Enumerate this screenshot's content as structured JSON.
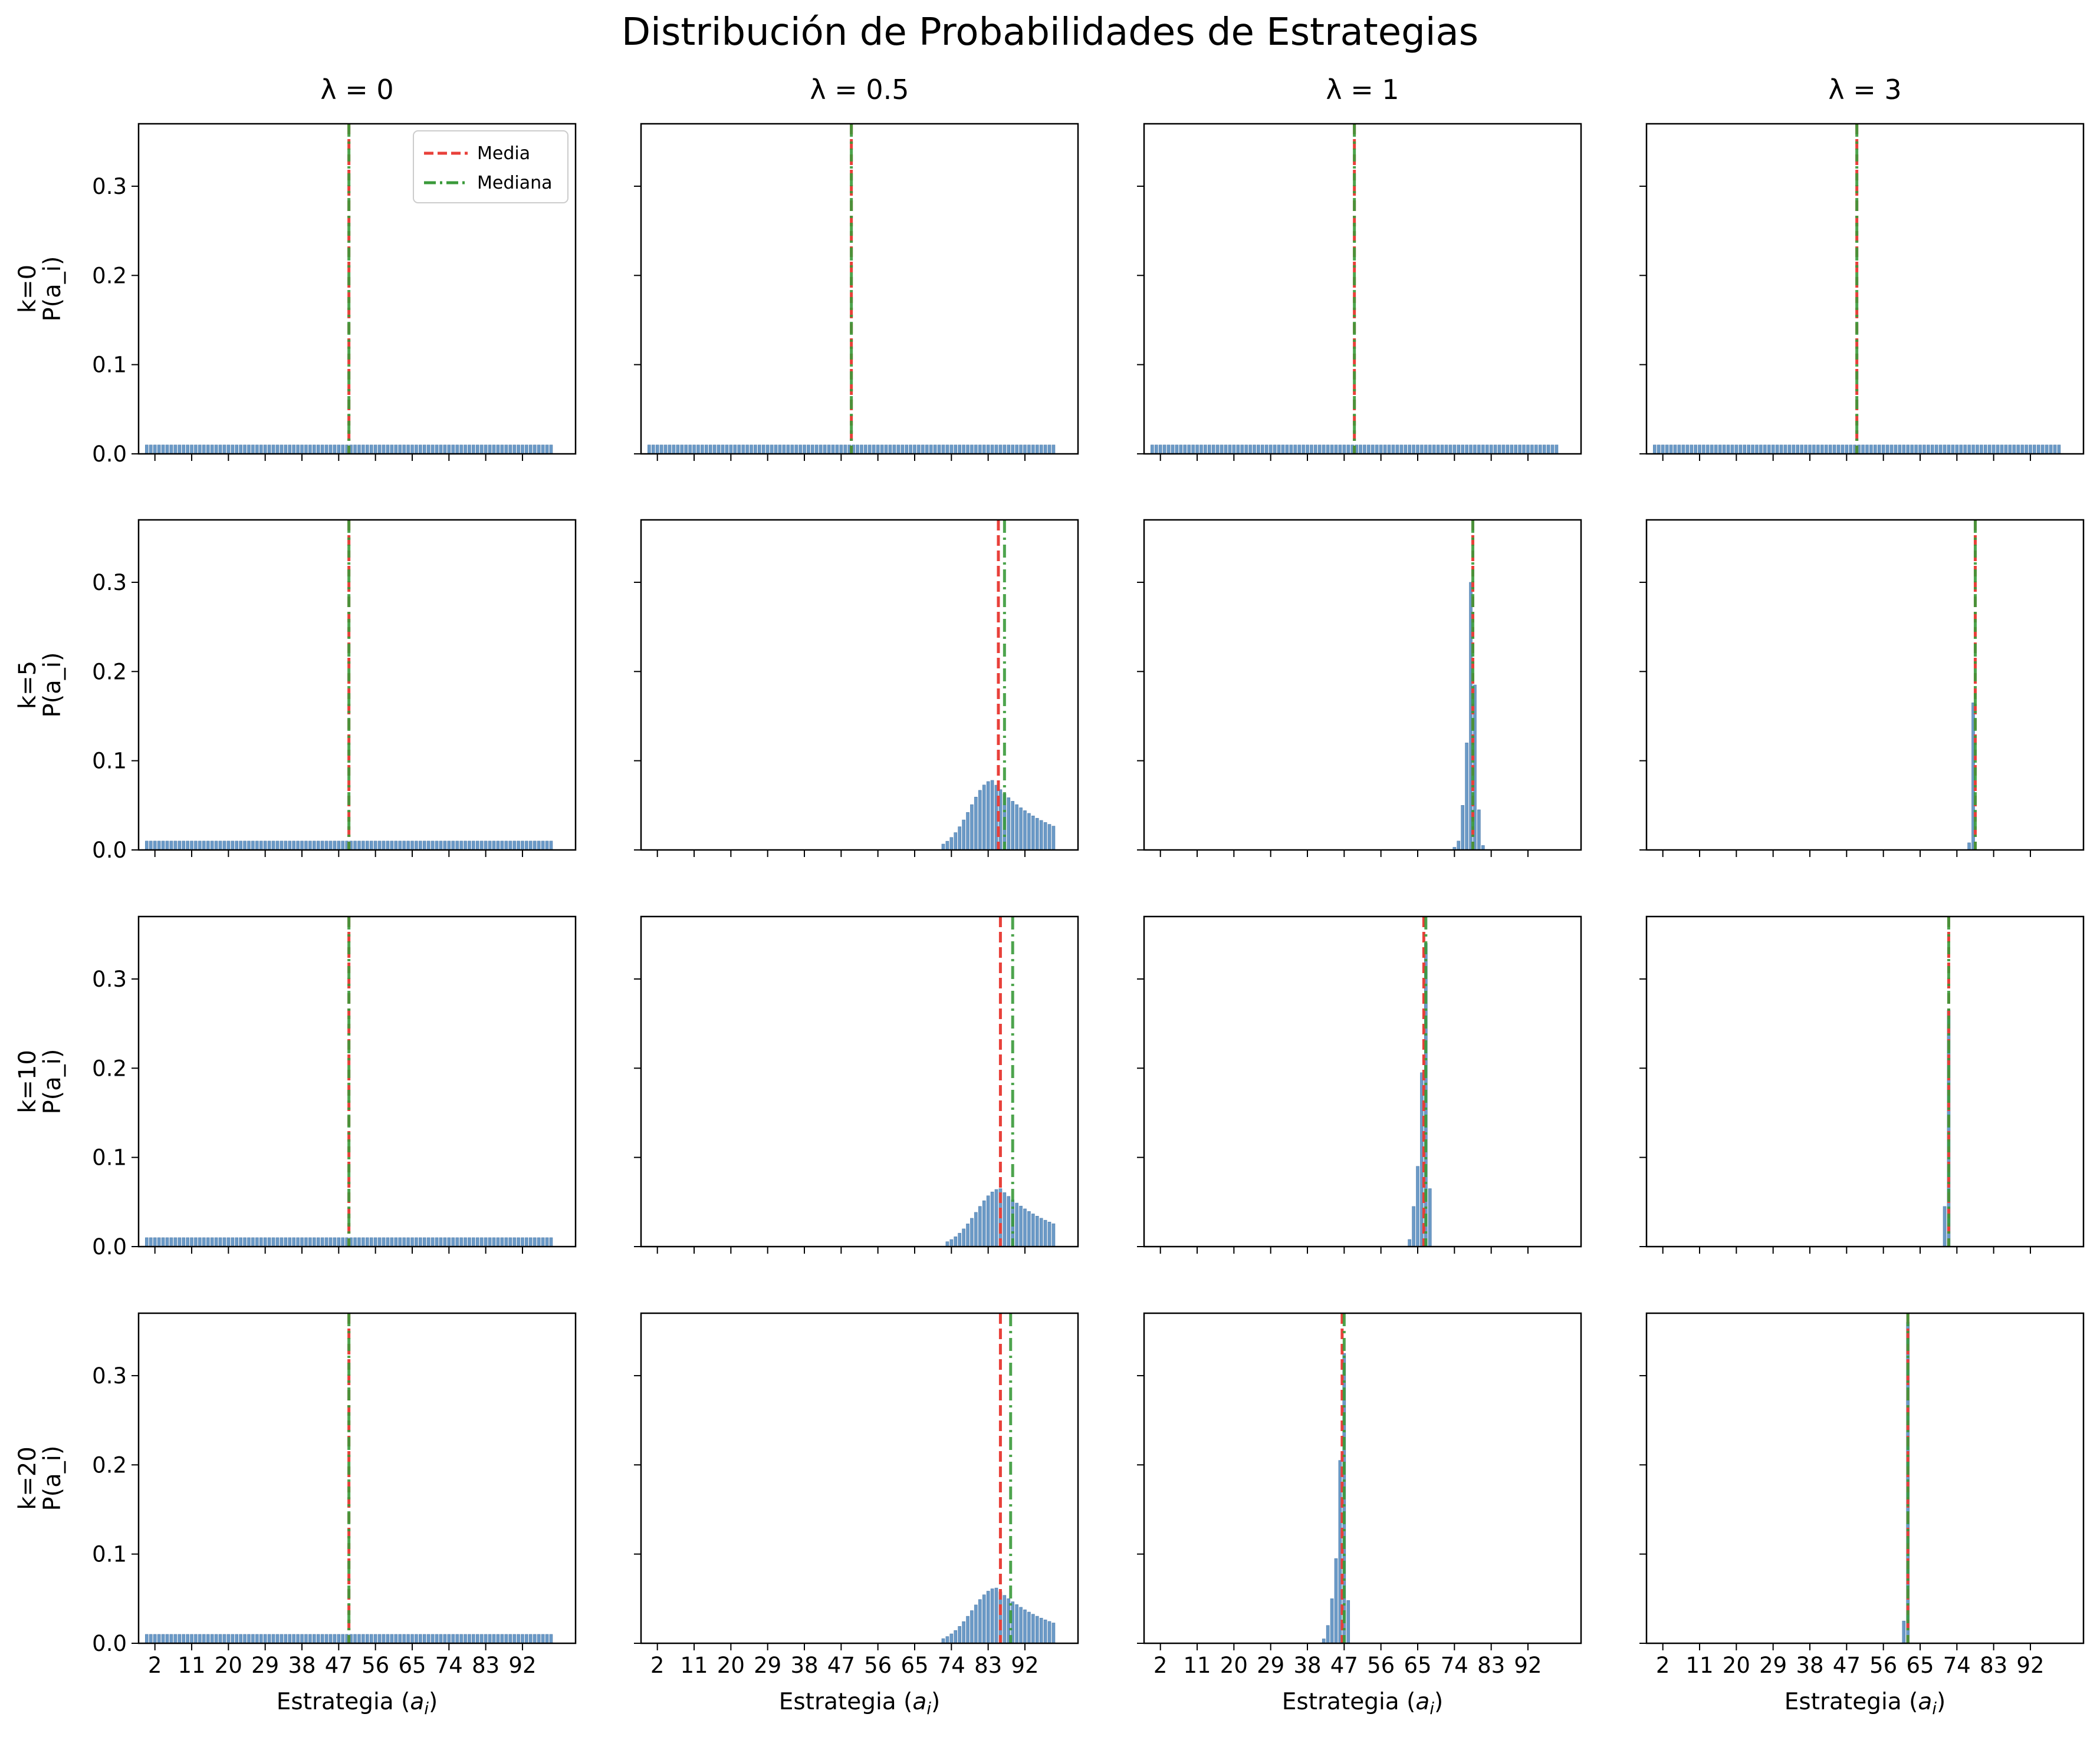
{
  "chart_data": {
    "type": "bar",
    "title": "Distribución de Probabilidades de Estrategias",
    "layout": "4x4 grid of subplots, shared axes",
    "columns": [
      "λ = 0",
      "λ = 0.5",
      "λ = 1",
      "λ = 3"
    ],
    "rows": [
      "k=0",
      "k=5",
      "k=10",
      "k=20"
    ],
    "ylabel": "P(a_i)",
    "xlabel": "Estrategia (a_i)",
    "x_range": [
      0,
      100
    ],
    "xlim": [
      -2,
      105
    ],
    "ylim": [
      0,
      0.37
    ],
    "x_ticks": [
      2,
      11,
      20,
      29,
      38,
      47,
      56,
      65,
      74,
      83,
      92
    ],
    "y_ticks": [
      0.0,
      0.1,
      0.2,
      0.3
    ],
    "y_tick_labels": [
      "0.0",
      "0.1",
      "0.2",
      "0.3"
    ],
    "bar_color": "#6b9ac7",
    "legend": {
      "position": "top-right of first subplot",
      "entries": [
        {
          "name": "Media",
          "style": "dashed",
          "color": "#e8403a"
        },
        {
          "name": "Mediana",
          "style": "dash-dot",
          "color": "#3a9a3a"
        }
      ]
    },
    "grid": false,
    "panels": [
      {
        "row": 0,
        "col": 0,
        "dist": "uniform",
        "mean": 49.5,
        "median": 49.5
      },
      {
        "row": 0,
        "col": 1,
        "dist": "uniform",
        "mean": 49.5,
        "median": 49.5
      },
      {
        "row": 0,
        "col": 2,
        "dist": "uniform",
        "mean": 49.5,
        "median": 49.5
      },
      {
        "row": 0,
        "col": 3,
        "dist": "uniform",
        "mean": 49.5,
        "median": 49.5
      },
      {
        "row": 1,
        "col": 0,
        "dist": "uniform",
        "mean": 49.5,
        "median": 49.5
      },
      {
        "row": 1,
        "col": 1,
        "dist": "skewed",
        "peak_x": 84,
        "peak_y": 0.078,
        "start_x": 72,
        "mean": 85.5,
        "median": 87
      },
      {
        "row": 1,
        "col": 2,
        "dist": "discrete",
        "points": [
          [
            74,
            0.003
          ],
          [
            75,
            0.01
          ],
          [
            76,
            0.05
          ],
          [
            77,
            0.12
          ],
          [
            78,
            0.3
          ],
          [
            79,
            0.185
          ],
          [
            80,
            0.045
          ],
          [
            81,
            0.005
          ]
        ],
        "mean": 78.5,
        "median": 78.5
      },
      {
        "row": 1,
        "col": 3,
        "dist": "discrete",
        "points": [
          [
            77,
            0.008
          ],
          [
            78,
            0.165
          ]
        ],
        "mean": 78.5,
        "median": 78.5
      },
      {
        "row": 2,
        "col": 0,
        "dist": "uniform",
        "mean": 49.5,
        "median": 49.5
      },
      {
        "row": 2,
        "col": 1,
        "dist": "skewed",
        "peak_x": 86,
        "peak_y": 0.065,
        "start_x": 73,
        "mean": 86,
        "median": 89
      },
      {
        "row": 2,
        "col": 2,
        "dist": "discrete",
        "points": [
          [
            63,
            0.008
          ],
          [
            64,
            0.045
          ],
          [
            65,
            0.09
          ],
          [
            66,
            0.195
          ],
          [
            67,
            0.34
          ],
          [
            68,
            0.065
          ]
        ],
        "mean": 66.5,
        "median": 67
      },
      {
        "row": 2,
        "col": 3,
        "dist": "discrete",
        "points": [
          [
            71,
            0.045
          ],
          [
            72,
            0.265
          ]
        ],
        "mean": 72,
        "median": 72
      },
      {
        "row": 3,
        "col": 0,
        "dist": "uniform",
        "mean": 49.5,
        "median": 49.5
      },
      {
        "row": 3,
        "col": 1,
        "dist": "skewed",
        "peak_x": 85,
        "peak_y": 0.062,
        "start_x": 72,
        "mean": 86,
        "median": 88.5
      },
      {
        "row": 3,
        "col": 2,
        "dist": "discrete",
        "points": [
          [
            42,
            0.005
          ],
          [
            43,
            0.02
          ],
          [
            44,
            0.05
          ],
          [
            45,
            0.095
          ],
          [
            46,
            0.205
          ],
          [
            47,
            0.325
          ],
          [
            48,
            0.048
          ]
        ],
        "mean": 46.5,
        "median": 47
      },
      {
        "row": 3,
        "col": 3,
        "dist": "discrete",
        "points": [
          [
            61,
            0.025
          ],
          [
            62,
            0.36
          ]
        ],
        "mean": 62,
        "median": 62
      }
    ]
  }
}
